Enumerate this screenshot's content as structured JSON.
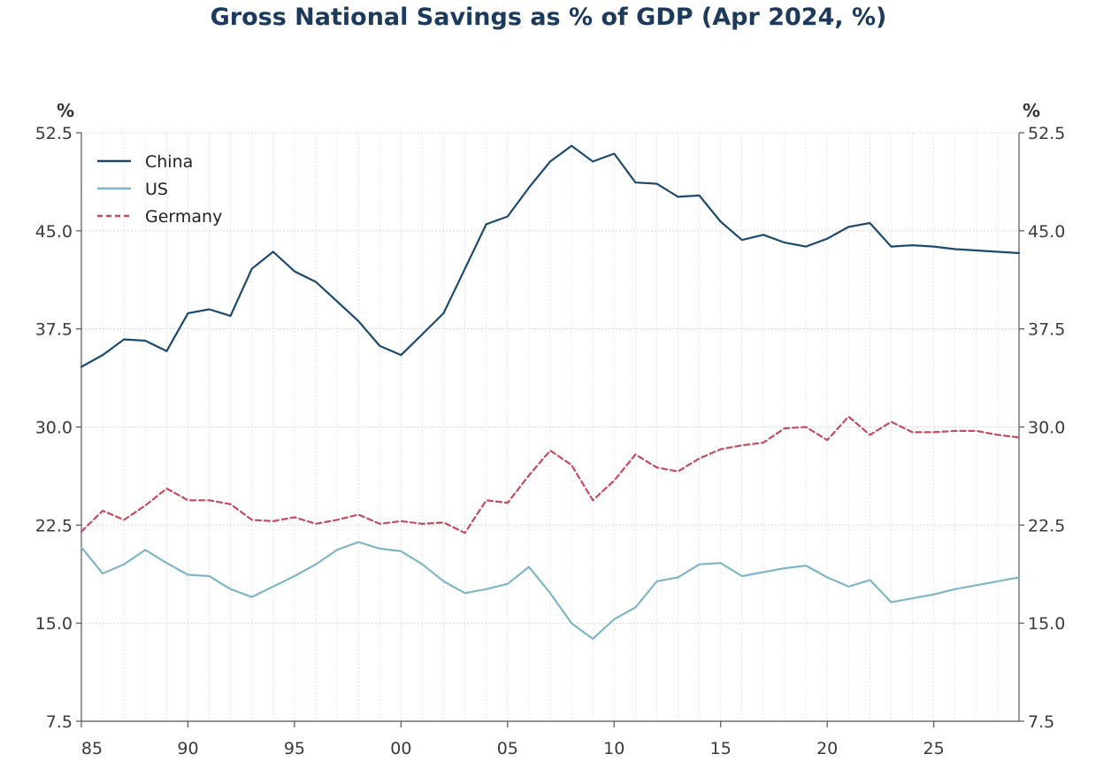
{
  "chart_data": {
    "type": "line",
    "title": "Gross National Savings as % of GDP (Apr 2024, %)",
    "y_unit_left": "%",
    "y_unit_right": "%",
    "ylim": [
      7.5,
      52.5
    ],
    "y_ticks": [
      "52.5",
      "45.0",
      "37.5",
      "30.0",
      "22.5",
      "15.0",
      "7.5"
    ],
    "y_tick_values": [
      52.5,
      45.0,
      37.5,
      30.0,
      22.5,
      15.0,
      7.5
    ],
    "x_ticks": [
      "85",
      "90",
      "95",
      "00",
      "05",
      "10",
      "15",
      "20",
      "25"
    ],
    "x_tick_values": [
      1985,
      1990,
      1995,
      2000,
      2005,
      2010,
      2015,
      2020,
      2025
    ],
    "xlim": [
      1985,
      2029
    ],
    "grid": true,
    "legend_placement": "top-left",
    "x": [
      1985,
      1986,
      1987,
      1988,
      1989,
      1990,
      1991,
      1992,
      1993,
      1994,
      1995,
      1996,
      1997,
      1998,
      1999,
      2000,
      2001,
      2002,
      2003,
      2004,
      2005,
      2006,
      2007,
      2008,
      2009,
      2010,
      2011,
      2012,
      2013,
      2014,
      2015,
      2016,
      2017,
      2018,
      2019,
      2020,
      2021,
      2022,
      2023,
      2024,
      2025,
      2026,
      2027,
      2028,
      2029
    ],
    "series": [
      {
        "name": "China",
        "color": "#1b4a6e",
        "dash": "solid",
        "values": [
          34.6,
          35.5,
          36.7,
          36.6,
          35.8,
          38.7,
          39.0,
          38.5,
          42.1,
          43.4,
          41.9,
          41.1,
          39.6,
          38.1,
          36.2,
          35.5,
          37.1,
          38.7,
          42.1,
          45.5,
          46.1,
          48.3,
          50.3,
          51.5,
          50.3,
          50.9,
          48.7,
          48.6,
          47.6,
          47.7,
          45.7,
          44.3,
          44.7,
          44.1,
          43.8,
          44.4,
          45.3,
          45.6,
          43.8,
          43.9,
          43.8,
          43.6,
          43.5,
          43.4,
          43.3
        ]
      },
      {
        "name": "US",
        "color": "#80b5c8",
        "dash": "solid",
        "values": [
          20.8,
          18.8,
          19.5,
          20.6,
          19.6,
          18.7,
          18.6,
          17.6,
          17.0,
          17.8,
          18.6,
          19.5,
          20.6,
          21.2,
          20.7,
          20.5,
          19.5,
          18.2,
          17.3,
          17.6,
          18.0,
          19.3,
          17.3,
          15.0,
          13.8,
          15.3,
          16.2,
          18.2,
          18.5,
          19.5,
          19.6,
          18.6,
          18.9,
          19.2,
          19.4,
          18.5,
          17.8,
          18.3,
          16.6,
          16.9,
          17.2,
          17.6,
          17.9,
          18.2,
          18.5
        ]
      },
      {
        "name": "Germany",
        "color": "#c44a5e",
        "dash": "dashed",
        "values": [
          22.0,
          23.6,
          22.9,
          24.0,
          25.3,
          24.4,
          24.4,
          24.1,
          22.9,
          22.8,
          23.1,
          22.6,
          22.9,
          23.3,
          22.6,
          22.8,
          22.6,
          22.7,
          21.9,
          24.4,
          24.2,
          26.3,
          28.2,
          27.1,
          24.4,
          25.9,
          27.9,
          26.9,
          26.6,
          27.6,
          28.3,
          28.6,
          28.8,
          29.9,
          30.0,
          29.0,
          30.8,
          29.4,
          30.4,
          29.6,
          29.6,
          29.7,
          29.7,
          29.4,
          29.2
        ]
      }
    ]
  }
}
